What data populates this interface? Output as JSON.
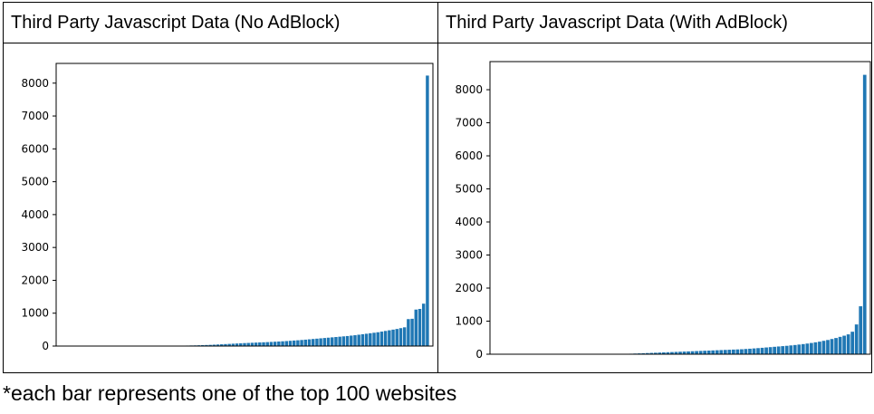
{
  "chart_data": [
    {
      "type": "bar",
      "title": "Third Party Javascript Data (No AdBlock)",
      "xlabel": "",
      "ylabel": "",
      "ylim": [
        0,
        8600
      ],
      "yticks": [
        0,
        1000,
        2000,
        3000,
        4000,
        5000,
        6000,
        7000,
        8000
      ],
      "grid": false,
      "series": [
        {
          "color": "#1f77b4",
          "values": [
            0,
            0,
            0,
            0,
            0,
            0,
            0,
            0,
            0,
            0,
            0,
            0,
            0,
            0,
            0,
            0,
            0,
            0,
            0,
            0,
            0,
            0,
            0,
            0,
            0,
            0,
            0,
            0,
            0,
            0,
            5,
            10,
            12,
            15,
            18,
            20,
            24,
            28,
            32,
            36,
            42,
            48,
            54,
            60,
            66,
            72,
            78,
            84,
            90,
            95,
            100,
            105,
            110,
            115,
            120,
            126,
            132,
            138,
            145,
            152,
            160,
            168,
            176,
            185,
            195,
            205,
            215,
            225,
            235,
            245,
            255,
            265,
            275,
            285,
            295,
            305,
            318,
            330,
            345,
            360,
            375,
            390,
            405,
            420,
            440,
            460,
            480,
            500,
            520,
            545,
            570,
            820,
            830,
            1110,
            1130,
            1290,
            8230
          ]
        }
      ]
    },
    {
      "type": "bar",
      "title": "Third Party Javascript Data (With AdBlock)",
      "xlabel": "",
      "ylabel": "",
      "ylim": [
        0,
        8850
      ],
      "yticks": [
        0,
        1000,
        2000,
        3000,
        4000,
        5000,
        6000,
        7000,
        8000
      ],
      "grid": false,
      "series": [
        {
          "color": "#1f77b4",
          "values": [
            0,
            0,
            0,
            0,
            0,
            0,
            0,
            0,
            0,
            0,
            0,
            0,
            0,
            0,
            0,
            0,
            0,
            0,
            0,
            0,
            0,
            0,
            0,
            0,
            0,
            0,
            0,
            0,
            0,
            0,
            0,
            0,
            10,
            15,
            20,
            25,
            30,
            35,
            40,
            45,
            50,
            55,
            60,
            65,
            70,
            75,
            80,
            85,
            90,
            95,
            100,
            105,
            110,
            115,
            120,
            125,
            130,
            135,
            140,
            145,
            150,
            158,
            166,
            175,
            184,
            194,
            204,
            214,
            224,
            234,
            244,
            254,
            266,
            278,
            292,
            306,
            322,
            340,
            360,
            380,
            405,
            430,
            460,
            490,
            525,
            560,
            600,
            680,
            900,
            1450,
            8450
          ]
        }
      ]
    }
  ],
  "footnote": "*each bar represents one of the top 100 websites"
}
